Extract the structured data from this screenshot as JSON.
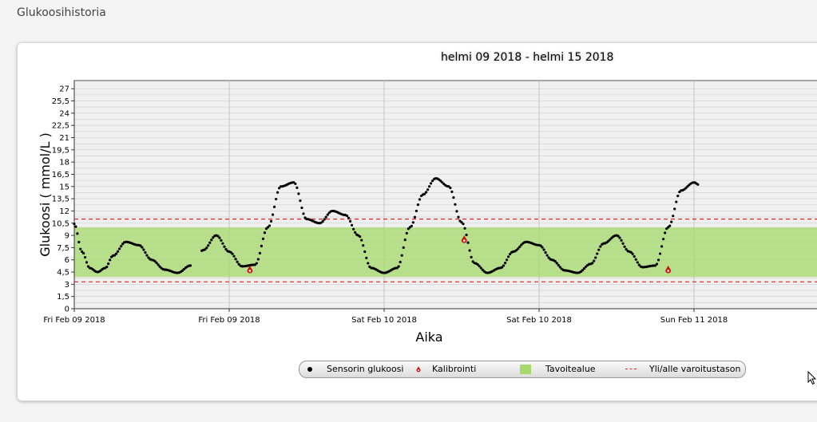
{
  "page": {
    "title": "Glukoosihistoria"
  },
  "chart_data": {
    "type": "scatter",
    "title": "helmi 09 2018 - helmi 15 2018",
    "xlabel": "Aika",
    "ylabel": "Glukoosi ( mmol/L )",
    "ylim": [
      0,
      28
    ],
    "yticks": [
      "0",
      "1,5",
      "3",
      "4,5",
      "6",
      "7,5",
      "9",
      "10,5",
      "12",
      "13,5",
      "15",
      "16,5",
      "18",
      "19,5",
      "21",
      "22,5",
      "24",
      "25,5",
      "27"
    ],
    "xticks": [
      "Fri Feb 09 2018",
      "Fri Feb 09 2018",
      "Sat Feb 10 2018",
      "Sat Feb 10 2018",
      "Sun Feb 11 2018"
    ],
    "x_unit": "hours from first tick",
    "x_visible_range": [
      0,
      24.2
    ],
    "target_range": [
      3.9,
      10
    ],
    "warning_lines": [
      3.3,
      11
    ],
    "grid": true,
    "legend_position": "bottom",
    "series": [
      {
        "name": "Sensorin glukoosi",
        "x": [
          0,
          0.3,
          0.6,
          0.9,
          1.2,
          1.5,
          2.0,
          2.5,
          3.0,
          3.5,
          4.0,
          4.5,
          5.0,
          5.5,
          6.0,
          6.5,
          7.0,
          7.5,
          8.0,
          8.5,
          9.0,
          9.5,
          10.0,
          10.5,
          11.0,
          11.5,
          12.0,
          12.5,
          13.0,
          13.5,
          14.0,
          14.5,
          15.0,
          15.5,
          16.0,
          16.5,
          17.0,
          17.5,
          18.0,
          18.5,
          19.0,
          19.5,
          20.0,
          20.5,
          21.0,
          21.5,
          22.0,
          22.5,
          23.0,
          23.5,
          24.0,
          24.2
        ],
        "y": [
          10.4,
          7,
          5,
          4.5,
          5,
          6.5,
          8.2,
          7.8,
          6,
          4.8,
          4.4,
          5.3,
          7.2,
          9,
          7,
          5.2,
          5.4,
          10,
          15,
          15.5,
          11,
          10.5,
          12,
          11.5,
          9,
          5,
          4.4,
          5,
          10,
          14,
          16,
          15,
          10.6,
          5.6,
          4.4,
          5,
          7,
          8.2,
          7.8,
          6,
          4.7,
          4.4,
          5.5,
          8,
          9,
          7,
          5.1,
          5.3,
          10,
          14.5,
          15.5,
          15.2
        ]
      },
      {
        "name": "Kalibrointi",
        "x": [
          6.8,
          15.1,
          23.0
        ],
        "y": [
          4.8,
          8.5,
          4.8
        ]
      }
    ],
    "legend": [
      {
        "label": "Sensorin glukoosi",
        "icon": "black-dot"
      },
      {
        "label": "Kalibrointi",
        "icon": "red-drop"
      },
      {
        "label": "Tavoitealue",
        "icon": "green-box"
      },
      {
        "label": "Yli/alle varoitustason",
        "icon": "red-dashed-line"
      }
    ]
  },
  "colors": {
    "sensor": "#000000",
    "calibration": "#cc1111",
    "target": "#a6d96a",
    "warning": "#e02020",
    "grid": "#cccccc"
  }
}
